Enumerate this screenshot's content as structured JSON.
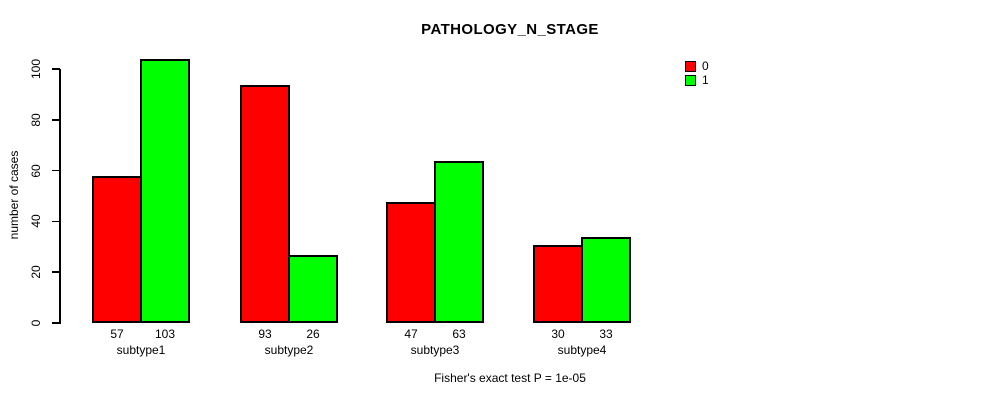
{
  "chart_data": {
    "type": "bar",
    "title": "PATHOLOGY_N_STAGE",
    "xlabel": "",
    "ylabel": "number of cases",
    "categories": [
      "subtype1",
      "subtype2",
      "subtype3",
      "subtype4"
    ],
    "series": [
      {
        "name": "0",
        "color": "#ff0000",
        "values": [
          57,
          93,
          47,
          30
        ]
      },
      {
        "name": "1",
        "color": "#00ff00",
        "values": [
          103,
          26,
          63,
          33
        ]
      }
    ],
    "bar_value_labels": [
      [
        "57",
        "103"
      ],
      [
        "93",
        "26"
      ],
      [
        "47",
        "63"
      ],
      [
        "30",
        "33"
      ]
    ],
    "yticks": [
      "0",
      "20",
      "40",
      "60",
      "80",
      "100"
    ],
    "ylim": [
      0,
      100
    ],
    "grid": false,
    "legend_position": "top-right",
    "annotation": "Fisher's exact test P = 1e-05"
  },
  "colors": {
    "background": "#ffffff",
    "bar_border": "#000000",
    "axis": "#000000",
    "text": "#000000",
    "series_0": "#ff0000",
    "series_1": "#00ff00"
  }
}
